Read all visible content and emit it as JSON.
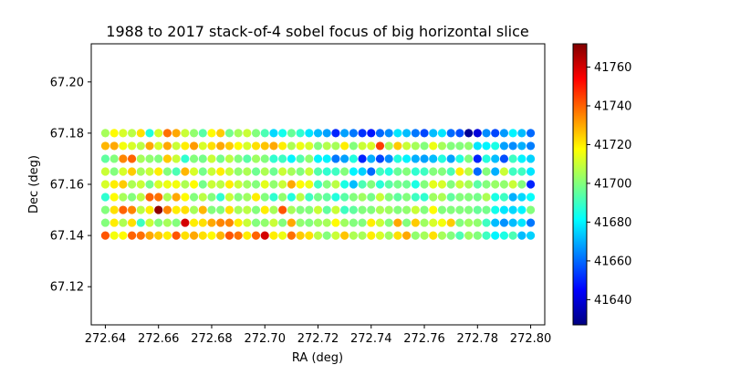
{
  "chart_data": {
    "type": "scatter",
    "title": "1988 to 2017 stack-of-4 sobel focus of big horizontal slice",
    "xlabel": "RA (deg)",
    "ylabel": "Dec (deg)",
    "xlim": [
      272.6347,
      272.8053
    ],
    "ylim": [
      67.1051,
      67.2149
    ],
    "xticks": [
      "272.64",
      "272.66",
      "272.68",
      "272.70",
      "272.72",
      "272.74",
      "272.76",
      "272.78",
      "272.80"
    ],
    "yticks": [
      "67.12",
      "67.14",
      "67.16",
      "67.18",
      "67.20"
    ],
    "grid": false,
    "colormap": "jet",
    "colorbar": {
      "min": 41627,
      "max": 41772,
      "ticks": [
        "41640",
        "41660",
        "41680",
        "41700",
        "41720",
        "41740",
        "41760"
      ]
    },
    "x_start": 272.64,
    "x_step": 0.0033333,
    "x_count": 49,
    "y_values": [
      67.18,
      67.17,
      67.165,
      67.16,
      67.155,
      67.15,
      67.145,
      67.14,
      67.175
    ],
    "z_rows": [
      [
        41705,
        41718,
        41712,
        41708,
        41722,
        41686,
        41712,
        41738,
        41730,
        41710,
        41702,
        41694,
        41718,
        41725,
        41698,
        41705,
        41710,
        41700,
        41692,
        41676,
        41684,
        41696,
        41688,
        41678,
        41672,
        41668,
        41650,
        41668,
        41662,
        41652,
        41648,
        41660,
        41665,
        41678,
        41672,
        41662,
        41655,
        41672,
        41678,
        41660,
        41656,
        41630,
        41640,
        41665,
        41655,
        41667,
        41680,
        41672,
        41660
      ],
      [
        41695,
        41700,
        41735,
        41740,
        41705,
        41702,
        41700,
        41725,
        41710,
        41688,
        41700,
        41698,
        41710,
        41698,
        41708,
        41700,
        41694,
        41704,
        41700,
        41688,
        41690,
        41680,
        41693,
        41702,
        41680,
        41680,
        41662,
        41668,
        41686,
        41650,
        41670,
        41655,
        41665,
        41686,
        41680,
        41670,
        41668,
        41672,
        41686,
        41668,
        41686,
        41700,
        41650,
        41686,
        41672,
        41656,
        41690,
        41680,
        41675
      ],
      [
        41710,
        41700,
        41712,
        41725,
        41705,
        41710,
        41720,
        41700,
        41692,
        41728,
        41712,
        41698,
        41710,
        41720,
        41710,
        41702,
        41706,
        41697,
        41706,
        41697,
        41710,
        41705,
        41700,
        41710,
        41693,
        41688,
        41690,
        41700,
        41680,
        41675,
        41660,
        41690,
        41686,
        41696,
        41700,
        41688,
        41690,
        41700,
        41700,
        41692,
        41720,
        41708,
        41660,
        41700,
        41670,
        41710,
        41690,
        41690,
        41678
      ],
      [
        41712,
        41720,
        41725,
        41706,
        41710,
        41698,
        41712,
        41715,
        41716,
        41706,
        41718,
        41698,
        41710,
        41708,
        41720,
        41710,
        41704,
        41700,
        41714,
        41702,
        41710,
        41730,
        41718,
        41715,
        41690,
        41700,
        41708,
        41685,
        41672,
        41692,
        41700,
        41687,
        41694,
        41698,
        41697,
        41685,
        41700,
        41714,
        41712,
        41700,
        41710,
        41705,
        41694,
        41700,
        41703,
        41702,
        41710,
        41700,
        41650
      ],
      [
        41688,
        41718,
        41705,
        41700,
        41708,
        41740,
        41738,
        41706,
        41730,
        41718,
        41700,
        41708,
        41700,
        41688,
        41710,
        41700,
        41704,
        41720,
        41700,
        41688,
        41702,
        41686,
        41708,
        41690,
        41698,
        41695,
        41686,
        41694,
        41700,
        41704,
        41698,
        41710,
        41700,
        41695,
        41700,
        41690,
        41688,
        41704,
        41706,
        41695,
        41700,
        41700,
        41698,
        41706,
        41685,
        41690,
        41670,
        41676,
        41682
      ],
      [
        41700,
        41722,
        41740,
        41735,
        41708,
        41720,
        41770,
        41735,
        41720,
        41722,
        41705,
        41728,
        41700,
        41700,
        41722,
        41705,
        41708,
        41700,
        41720,
        41705,
        41742,
        41705,
        41700,
        41700,
        41710,
        41695,
        41710,
        41690,
        41695,
        41700,
        41700,
        41706,
        41704,
        41700,
        41702,
        41710,
        41700,
        41718,
        41700,
        41700,
        41700,
        41700,
        41696,
        41698,
        41684,
        41678,
        41676,
        41680,
        41700
      ],
      [
        41700,
        41720,
        41706,
        41722,
        41690,
        41710,
        41700,
        41705,
        41700,
        41760,
        41720,
        41722,
        41730,
        41735,
        41735,
        41720,
        41710,
        41700,
        41702,
        41710,
        41700,
        41730,
        41702,
        41700,
        41704,
        41705,
        41718,
        41704,
        41700,
        41700,
        41720,
        41710,
        41700,
        41730,
        41700,
        41725,
        41704,
        41712,
        41716,
        41725,
        41700,
        41704,
        41702,
        41690,
        41672,
        41666,
        41672,
        41678,
        41662
      ],
      [
        41742,
        41716,
        41718,
        41740,
        41738,
        41730,
        41725,
        41720,
        41742,
        41722,
        41730,
        41722,
        41718,
        41728,
        41742,
        41738,
        41720,
        41740,
        41760,
        41720,
        41715,
        41738,
        41725,
        41722,
        41708,
        41700,
        41710,
        41726,
        41706,
        41705,
        41720,
        41712,
        41704,
        41722,
        41730,
        41702,
        41705,
        41722,
        41705,
        41700,
        41692,
        41704,
        41700,
        41690,
        41680,
        41685,
        41692,
        41672,
        41675
      ],
      [
        41728,
        41730,
        41716,
        41712,
        41708,
        41730,
        41712,
        41730,
        41710,
        41720,
        41732,
        41712,
        41722,
        41730,
        41725,
        41718,
        41712,
        41722,
        41726,
        41730,
        41720,
        41706,
        41715,
        41712,
        41700,
        41707,
        41705,
        41720,
        41700,
        41710,
        41712,
        41745,
        41705,
        41725,
        41710,
        41705,
        41700,
        41715,
        41705,
        41700,
        41700,
        41702,
        41678,
        41680,
        41685,
        41668,
        41665,
        41670,
        41663
      ]
    ]
  }
}
